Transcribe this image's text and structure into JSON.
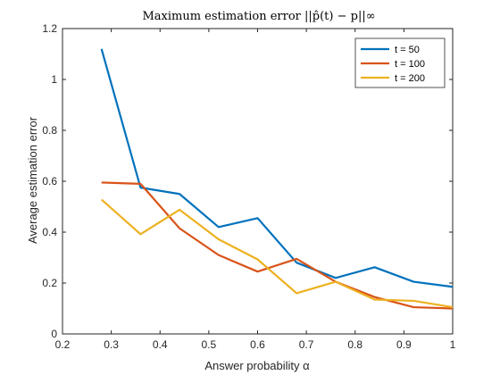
{
  "chart_data": {
    "type": "line",
    "title": "Maximum estimation error ||p̂(t) − p||∞",
    "xlabel": "Answer probability α",
    "ylabel": "Average estimation error",
    "xlim": [
      0.2,
      1
    ],
    "ylim": [
      0,
      1.2
    ],
    "x_ticks": [
      "0.2",
      "0.3",
      "0.4",
      "0.5",
      "0.6",
      "0.7",
      "0.8",
      "0.9",
      "1"
    ],
    "y_ticks": [
      "0",
      "0.2",
      "0.4",
      "0.6",
      "0.8",
      "1",
      "1.2"
    ],
    "grid": false,
    "legend_position": "top-right",
    "x": [
      0.28,
      0.36,
      0.44,
      0.52,
      0.6,
      0.68,
      0.76,
      0.84,
      0.92,
      1.0
    ],
    "series": [
      {
        "name": "t = 50",
        "color": "#0072BD",
        "values": [
          1.12,
          0.575,
          0.55,
          0.42,
          0.455,
          0.28,
          0.22,
          0.262,
          0.205,
          0.185
        ]
      },
      {
        "name": "t = 100",
        "color": "#D95319",
        "values": [
          0.595,
          0.59,
          0.415,
          0.31,
          0.245,
          0.295,
          0.205,
          0.145,
          0.105,
          0.1
        ]
      },
      {
        "name": "t = 200",
        "color": "#EDB120",
        "values": [
          0.528,
          0.392,
          0.488,
          0.372,
          0.293,
          0.16,
          0.205,
          0.135,
          0.13,
          0.105
        ]
      }
    ]
  }
}
